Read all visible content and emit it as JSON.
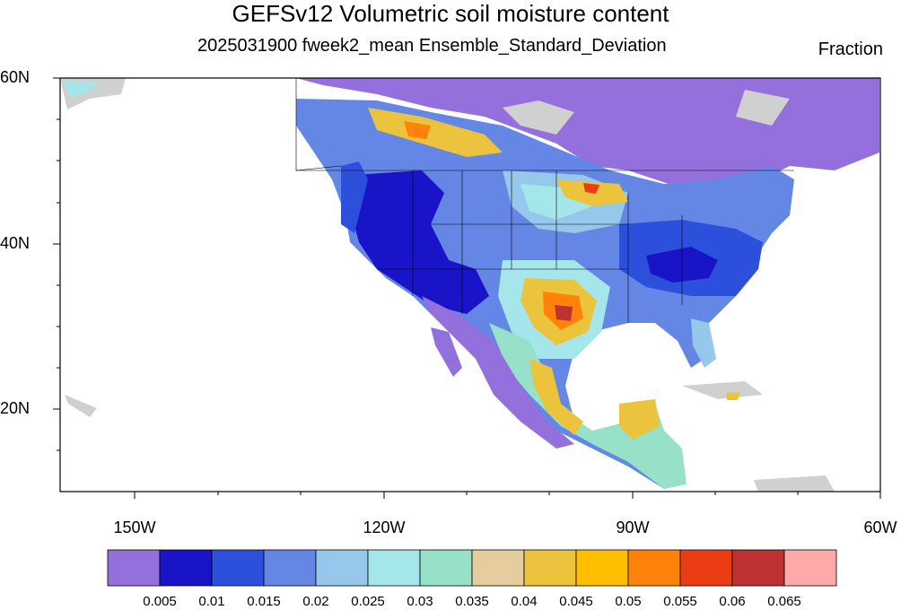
{
  "title": "GEFSv12 Volumetric soil moisture content",
  "subtitle": "2025031900 fweek2_mean Ensemble_Standard_Deviation",
  "units": "Fraction",
  "lat_labels": [
    "60N",
    "40N",
    "20N"
  ],
  "lon_labels": [
    "150W",
    "120W",
    "90W",
    "60W"
  ],
  "colorbar": {
    "colors": [
      "#9370db",
      "#1a14c8",
      "#2d50dc",
      "#6487e6",
      "#96c8eb",
      "#a5e6eb",
      "#96e1c8",
      "#e6cda0",
      "#ebc33c",
      "#ffbe00",
      "#ff820a",
      "#eb3c14",
      "#be3232",
      "#ffaaaa"
    ],
    "labels": [
      "0.005",
      "0.01",
      "0.015",
      "0.02",
      "0.025",
      "0.03",
      "0.035",
      "0.04",
      "0.045",
      "0.05",
      "0.055",
      "0.06",
      "0.065"
    ]
  }
}
